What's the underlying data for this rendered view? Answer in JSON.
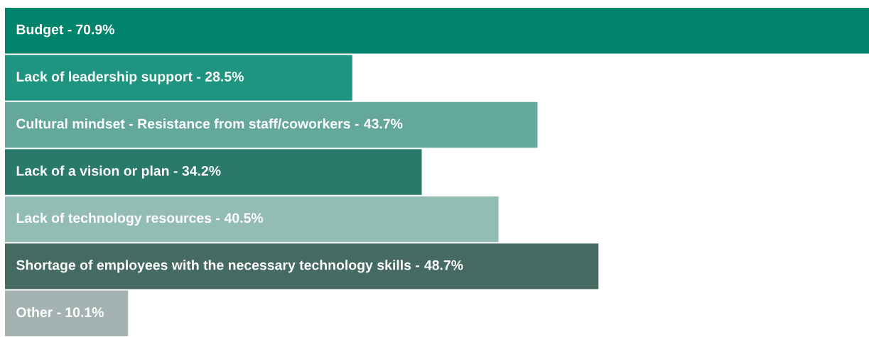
{
  "chart_data": {
    "type": "bar",
    "orientation": "horizontal",
    "categories": [
      "Budget -",
      "Lack of leadership support -",
      "Cultural mindset - Resistance from staff/coworkers -",
      "Lack of a vision or plan -",
      "Lack of technology resources -",
      "Shortage of employees with the necessary technology skills -",
      "Other -"
    ],
    "values": [
      70.9,
      28.5,
      43.7,
      34.2,
      40.5,
      48.7,
      10.1
    ],
    "value_labels": [
      "70.9%",
      "28.5%",
      "43.7%",
      "34.2%",
      "40.5%",
      "48.7%",
      "10.1%"
    ],
    "colors": [
      "#00846c",
      "#1f9480",
      "#64a89c",
      "#2a7a6c",
      "#93bdb4",
      "#456a62",
      "#a4b3b1"
    ]
  }
}
